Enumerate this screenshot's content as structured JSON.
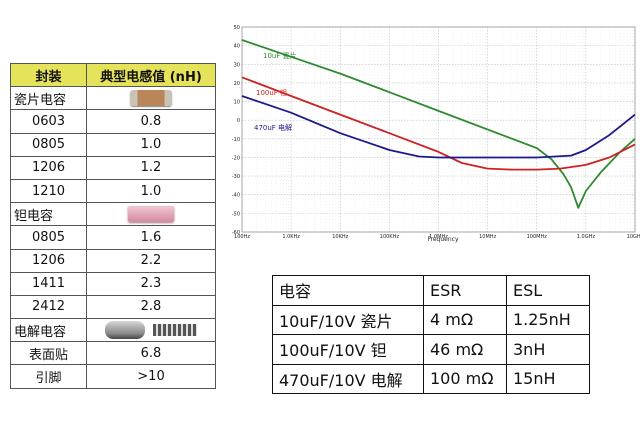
{
  "package_table": {
    "headers": [
      "封装",
      "典型电感值 (nH)"
    ],
    "groups": [
      {
        "name": "瓷片电容",
        "chip": "ceramic-chip-image",
        "rows": [
          [
            "0603",
            "0.8"
          ],
          [
            "0805",
            "1.0"
          ],
          [
            "1206",
            "1.2"
          ],
          [
            "1210",
            "1.0"
          ]
        ]
      },
      {
        "name": "钽电容",
        "chip": "tantalum-chip-image",
        "rows": [
          [
            "0805",
            "1.6"
          ],
          [
            "1206",
            "2.2"
          ],
          [
            "1411",
            "2.3"
          ],
          [
            "2412",
            "2.8"
          ]
        ]
      },
      {
        "name": "电解电容",
        "chip": "electrolytic-capacitor-image",
        "rows": [
          [
            "表面贴",
            "6.8"
          ],
          [
            "引脚",
            ">10"
          ]
        ]
      }
    ],
    "header_color": "#e5e35a"
  },
  "esr_table": {
    "headers": [
      "电容",
      "ESR",
      "ESL"
    ],
    "rows": [
      [
        "10uF/10V 瓷片",
        "4 mΩ",
        "1.25nH"
      ],
      [
        "100uF/10V 钽",
        "46 mΩ",
        "3nH"
      ],
      [
        "470uF/10V 电解",
        "100 mΩ",
        "15nH"
      ]
    ]
  },
  "chart_data": {
    "type": "line",
    "xlabel": "Frequency",
    "ylabel": "",
    "xscale": "log",
    "xlim_hz": [
      100,
      10000000000
    ],
    "x_tick_labels": [
      "100Hz",
      "1.0KHz",
      "10KHz",
      "100KHz",
      "1.0MHz",
      "10MHz",
      "100MHz",
      "1.0GHz",
      "10GHz"
    ],
    "x_tick_values_hz": [
      100,
      1000,
      10000,
      100000,
      1000000,
      10000000,
      100000000,
      1000000000,
      10000000000
    ],
    "ylim": [
      -60,
      50
    ],
    "y_tick_labels": [
      "50",
      "40",
      "30",
      "20",
      "10",
      "0",
      "-10",
      "-20",
      "-30",
      "-40",
      "-50",
      "-60"
    ],
    "y_tick_values": [
      50,
      40,
      30,
      20,
      10,
      0,
      -10,
      -20,
      -30,
      -40,
      -50,
      -60
    ],
    "grid": true,
    "series": [
      {
        "name": "10uF 瓷片",
        "color": "#2e8b2e",
        "x": [
          100,
          1000,
          10000,
          100000,
          1000000,
          10000000,
          100000000,
          200000000,
          350000000,
          500000000,
          700000000,
          1000000000,
          2000000000,
          5000000000,
          10000000000
        ],
        "y": [
          43,
          34,
          25,
          15,
          5,
          -5,
          -15,
          -21,
          -29,
          -36,
          -47,
          -38,
          -28,
          -17,
          -10
        ]
      },
      {
        "name": "100uF 钽",
        "color": "#cc2222",
        "x": [
          100,
          1000,
          10000,
          100000,
          1000000,
          3000000,
          10000000,
          30000000,
          100000000,
          300000000,
          1000000000,
          3000000000,
          10000000000
        ],
        "y": [
          23,
          13,
          3,
          -7,
          -17,
          -23,
          -26,
          -26.5,
          -26.5,
          -26,
          -24,
          -20,
          -13
        ]
      },
      {
        "name": "470uF 电解",
        "color": "#1a1a8a",
        "x": [
          100,
          1000,
          10000,
          100000,
          400000,
          1000000,
          10000000,
          100000000,
          500000000,
          1000000000,
          3000000000,
          10000000000
        ],
        "y": [
          13,
          4,
          -7,
          -16,
          -19.5,
          -20,
          -20,
          -20,
          -19,
          -16,
          -8,
          3
        ]
      }
    ]
  }
}
